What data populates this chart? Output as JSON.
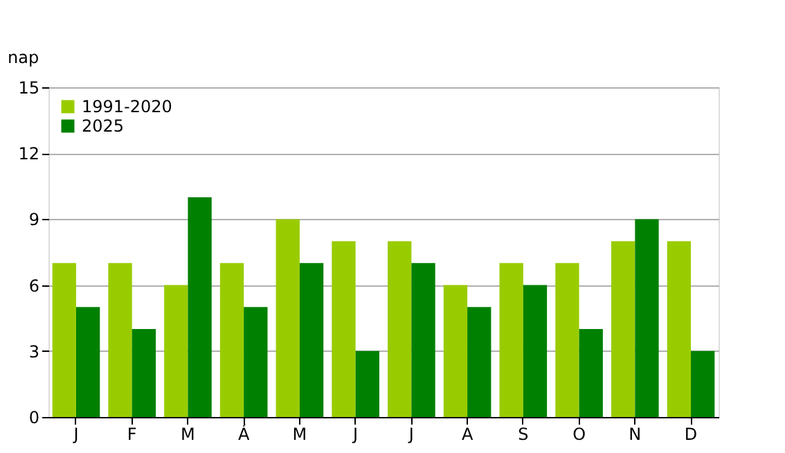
{
  "chart_data": {
    "type": "bar",
    "ylabel": "nap",
    "categories": [
      "J",
      "F",
      "M",
      "Á",
      "M",
      "J",
      "J",
      "A",
      "S",
      "O",
      "N",
      "D"
    ],
    "series": [
      {
        "name": "1991-2020",
        "color": "#99cc00",
        "values": [
          7,
          7,
          6,
          7,
          9,
          8,
          8,
          6,
          7,
          7,
          8,
          8
        ]
      },
      {
        "name": "2025",
        "color": "#008000",
        "values": [
          5,
          4,
          10,
          5,
          7,
          3,
          7,
          5,
          6,
          4,
          9,
          3
        ]
      }
    ],
    "ylim": [
      0,
      15
    ],
    "yticks": [
      0,
      3,
      6,
      9,
      12,
      15
    ],
    "grid": "y",
    "legend": "top left"
  }
}
